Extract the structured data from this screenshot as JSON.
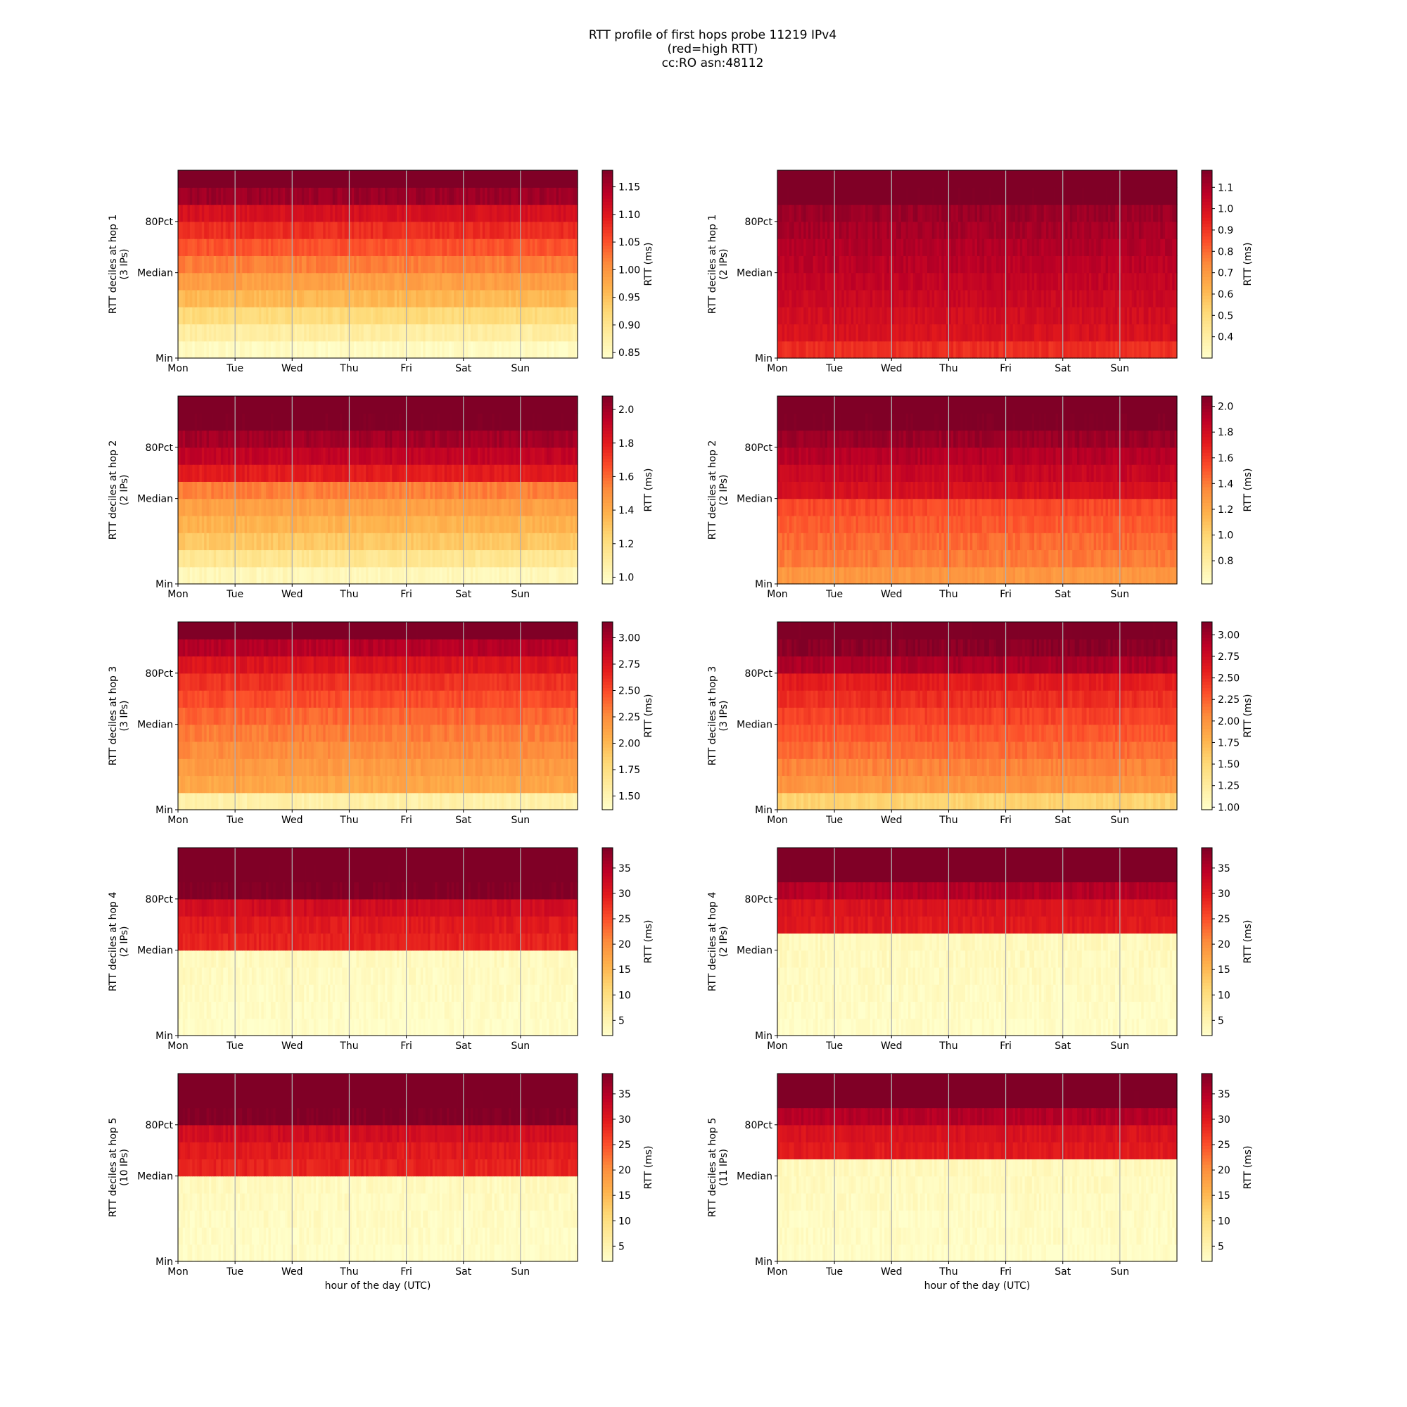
{
  "title_lines": [
    "RTT profile of first hops probe 11219 IPv4",
    "(red=high RTT)",
    "cc:RO asn:48112"
  ],
  "chart_data": {
    "type": "heatmap",
    "ytick_labels": [
      "Min",
      "Median",
      "80Pct"
    ],
    "ytick_deciles": [
      0,
      5,
      8
    ],
    "xtick_labels": [
      "Mon",
      "Tue",
      "Wed",
      "Thu",
      "Fri",
      "Sat",
      "Sun"
    ],
    "xlabel": "hour of the day (UTC)",
    "colorbar_label": "RTT (ms)",
    "panels": [
      {
        "ylabel": "RTT deciles at hop 1",
        "ylabel2": "(3 IPs)",
        "clim": [
          0.84,
          1.18
        ],
        "cbar_ticks": [
          "0.85",
          "0.90",
          "0.95",
          "1.00",
          "1.05",
          "1.10",
          "1.15"
        ],
        "cbar_values": [
          0.85,
          0.9,
          0.95,
          1.0,
          1.05,
          1.1,
          1.15
        ],
        "decile_ms": [
          0.85,
          0.88,
          0.92,
          0.96,
          0.99,
          1.02,
          1.05,
          1.08,
          1.11,
          1.16,
          1.2
        ]
      },
      {
        "ylabel": "RTT deciles at hop 1",
        "ylabel2": "(2 IPs)",
        "clim": [
          0.3,
          1.18
        ],
        "cbar_ticks": [
          "0.4",
          "0.5",
          "0.6",
          "0.7",
          "0.8",
          "0.9",
          "1.0",
          "1.1"
        ],
        "cbar_values": [
          0.4,
          0.5,
          0.6,
          0.7,
          0.8,
          0.9,
          1.0,
          1.1
        ],
        "decile_ms": [
          0.92,
          0.99,
          1.01,
          1.03,
          1.05,
          1.07,
          1.09,
          1.11,
          1.13,
          1.2,
          1.25
        ]
      },
      {
        "ylabel": "RTT deciles at hop 2",
        "ylabel2": "(2 IPs)",
        "clim": [
          0.96,
          2.08
        ],
        "cbar_ticks": [
          "1.0",
          "1.2",
          "1.4",
          "1.6",
          "1.8",
          "2.0"
        ],
        "cbar_values": [
          1.0,
          1.2,
          1.4,
          1.6,
          1.8,
          2.0
        ],
        "decile_ms": [
          1.02,
          1.15,
          1.3,
          1.38,
          1.45,
          1.55,
          1.8,
          1.92,
          2.0,
          2.1,
          2.2
        ]
      },
      {
        "ylabel": "RTT deciles at hop 2",
        "ylabel2": "(2 IPs)",
        "clim": [
          0.62,
          2.08
        ],
        "cbar_ticks": [
          "0.8",
          "1.0",
          "1.2",
          "1.4",
          "1.6",
          "1.8",
          "2.0"
        ],
        "cbar_values": [
          0.8,
          1.0,
          1.2,
          1.4,
          1.6,
          1.8,
          2.0
        ],
        "decile_ms": [
          1.3,
          1.4,
          1.45,
          1.5,
          1.55,
          1.78,
          1.85,
          1.92,
          2.0,
          2.1,
          2.2
        ]
      },
      {
        "ylabel": "RTT deciles at hop 3",
        "ylabel2": "(3 IPs)",
        "clim": [
          1.37,
          3.15
        ],
        "cbar_ticks": [
          "1.50",
          "1.75",
          "2.00",
          "2.25",
          "2.50",
          "2.75",
          "3.00"
        ],
        "cbar_values": [
          1.5,
          1.75,
          2.0,
          2.25,
          2.5,
          2.75,
          3.0
        ],
        "decile_ms": [
          1.55,
          2.1,
          2.18,
          2.25,
          2.32,
          2.4,
          2.5,
          2.6,
          2.75,
          2.95,
          3.2
        ]
      },
      {
        "ylabel": "RTT deciles at hop 3",
        "ylabel2": "(3 IPs)",
        "clim": [
          0.97,
          3.15
        ],
        "cbar_ticks": [
          "1.00",
          "1.25",
          "1.50",
          "1.75",
          "2.00",
          "2.25",
          "2.50",
          "2.75",
          "3.00"
        ],
        "cbar_values": [
          1.0,
          1.25,
          1.5,
          1.75,
          2.0,
          2.25,
          2.5,
          2.75,
          3.0
        ],
        "decile_ms": [
          1.55,
          2.0,
          2.1,
          2.2,
          2.3,
          2.4,
          2.5,
          2.6,
          2.95,
          3.1,
          3.2
        ]
      },
      {
        "ylabel": "RTT deciles at hop 4",
        "ylabel2": "(2 IPs)",
        "clim": [
          2,
          39
        ],
        "cbar_ticks": [
          "5",
          "10",
          "15",
          "20",
          "25",
          "30",
          "35"
        ],
        "cbar_values": [
          5,
          10,
          15,
          20,
          25,
          30,
          35
        ],
        "decile_ms": [
          2.5,
          2.8,
          3.0,
          3.2,
          3.4,
          29,
          30,
          32,
          39,
          40,
          42
        ]
      },
      {
        "ylabel": "RTT deciles at hop 4",
        "ylabel2": "(2 IPs)",
        "clim": [
          2,
          39
        ],
        "cbar_ticks": [
          "5",
          "10",
          "15",
          "20",
          "25",
          "30",
          "35"
        ],
        "cbar_values": [
          5,
          10,
          15,
          20,
          25,
          30,
          35
        ],
        "decile_ms": [
          2.5,
          2.8,
          3.0,
          3.2,
          3.4,
          3.6,
          30,
          31,
          35,
          40,
          42
        ]
      },
      {
        "ylabel": "RTT deciles at hop 5",
        "ylabel2": "(10 IPs)",
        "clim": [
          2,
          39
        ],
        "cbar_ticks": [
          "5",
          "10",
          "15",
          "20",
          "25",
          "30",
          "35"
        ],
        "cbar_values": [
          5,
          10,
          15,
          20,
          25,
          30,
          35
        ],
        "decile_ms": [
          2.5,
          2.8,
          3.0,
          3.2,
          3.4,
          29,
          30,
          32,
          39,
          40,
          42
        ]
      },
      {
        "ylabel": "RTT deciles at hop 5",
        "ylabel2": "(11 IPs)",
        "clim": [
          2,
          39
        ],
        "cbar_ticks": [
          "5",
          "10",
          "15",
          "20",
          "25",
          "30",
          "35"
        ],
        "cbar_values": [
          5,
          10,
          15,
          20,
          25,
          30,
          35
        ],
        "decile_ms": [
          2.5,
          2.8,
          3.0,
          3.2,
          3.4,
          3.6,
          30,
          31,
          35,
          40,
          42
        ]
      }
    ]
  }
}
